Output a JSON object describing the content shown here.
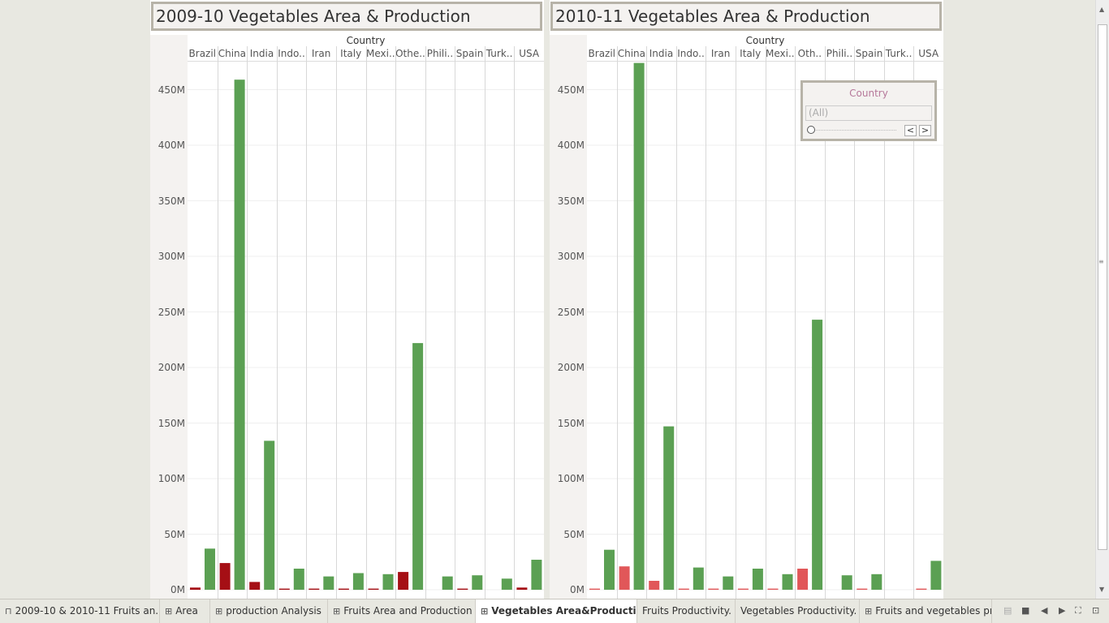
{
  "dashboards": [
    {
      "title": "2009-10 Vegetables Area & Production",
      "header": "Country",
      "y_ticks": [
        "0M",
        "50M",
        "100M",
        "150M",
        "200M",
        "250M",
        "300M",
        "350M",
        "400M",
        "450M"
      ]
    },
    {
      "title": "2010-11 Vegetables Area & Production",
      "header": "Country",
      "y_ticks": [
        "0M",
        "50M",
        "100M",
        "150M",
        "200M",
        "250M",
        "300M",
        "350M",
        "400M",
        "450M"
      ]
    }
  ],
  "categories_display": [
    "Brazil",
    "China",
    "India",
    "Indo..",
    "Iran",
    "Italy",
    "Mexi..",
    "Othe..",
    "Phili..",
    "Spain",
    "Turk..",
    "USA"
  ],
  "categories_display_right": [
    "Brazil",
    "China",
    "India",
    "Indo..",
    "Iran",
    "Italy",
    "Mexi..",
    "Oth..",
    "Phili..",
    "Spain",
    "Turk..",
    "USA"
  ],
  "filter": {
    "title": "Country",
    "value": "(All)",
    "prev": "<",
    "next": ">"
  },
  "colors": {
    "production": "#5ba053",
    "area_2009": "#a50f15",
    "area_2010": "#e15759"
  },
  "chart_data": [
    {
      "type": "bar",
      "title": "2009-10 Vegetables Area & Production",
      "categories": [
        "Brazil",
        "China",
        "India",
        "Indonesia",
        "Iran",
        "Italy",
        "Mexico",
        "Others",
        "Philippines",
        "Spain",
        "Turkey",
        "USA"
      ],
      "series": [
        {
          "values": [
            2,
            24,
            7,
            1,
            1,
            1,
            1,
            16,
            0,
            1,
            0,
            2
          ]
        },
        {
          "values": [
            37,
            459,
            134,
            19,
            12,
            15,
            14,
            222,
            12,
            13,
            10,
            27
          ]
        }
      ],
      "xlabel": "Country",
      "ylabel": "",
      "ylim": [
        0,
        480
      ]
    },
    {
      "type": "bar",
      "title": "2010-11 Vegetables Area & Production",
      "categories": [
        "Brazil",
        "China",
        "India",
        "Indonesia",
        "Iran",
        "Italy",
        "Mexico",
        "Others",
        "Philippines",
        "Spain",
        "Turkey",
        "USA"
      ],
      "series": [
        {
          "values": [
            1,
            21,
            8,
            1,
            1,
            1,
            1,
            19,
            0,
            1,
            0,
            1
          ]
        },
        {
          "values": [
            36,
            474,
            147,
            20,
            12,
            19,
            14,
            243,
            13,
            14,
            0,
            26
          ]
        }
      ],
      "xlabel": "Country",
      "ylabel": "",
      "ylim": [
        0,
        480
      ]
    }
  ],
  "tabs": [
    {
      "icon": "book",
      "label": "2009-10 & 2010-11 Fruits an..."
    },
    {
      "icon": "grid",
      "label": "Area"
    },
    {
      "icon": "grid",
      "label": "production Analysis"
    },
    {
      "icon": "grid",
      "label": "Fruits Area and Production"
    },
    {
      "icon": "grid",
      "label": "Vegetables Area&Production",
      "active": true
    },
    {
      "icon": "",
      "label": "Fruits Productivity."
    },
    {
      "icon": "",
      "label": "Vegetables Productivity."
    },
    {
      "icon": "grid",
      "label": "Fruits and vegetables pro"
    }
  ]
}
